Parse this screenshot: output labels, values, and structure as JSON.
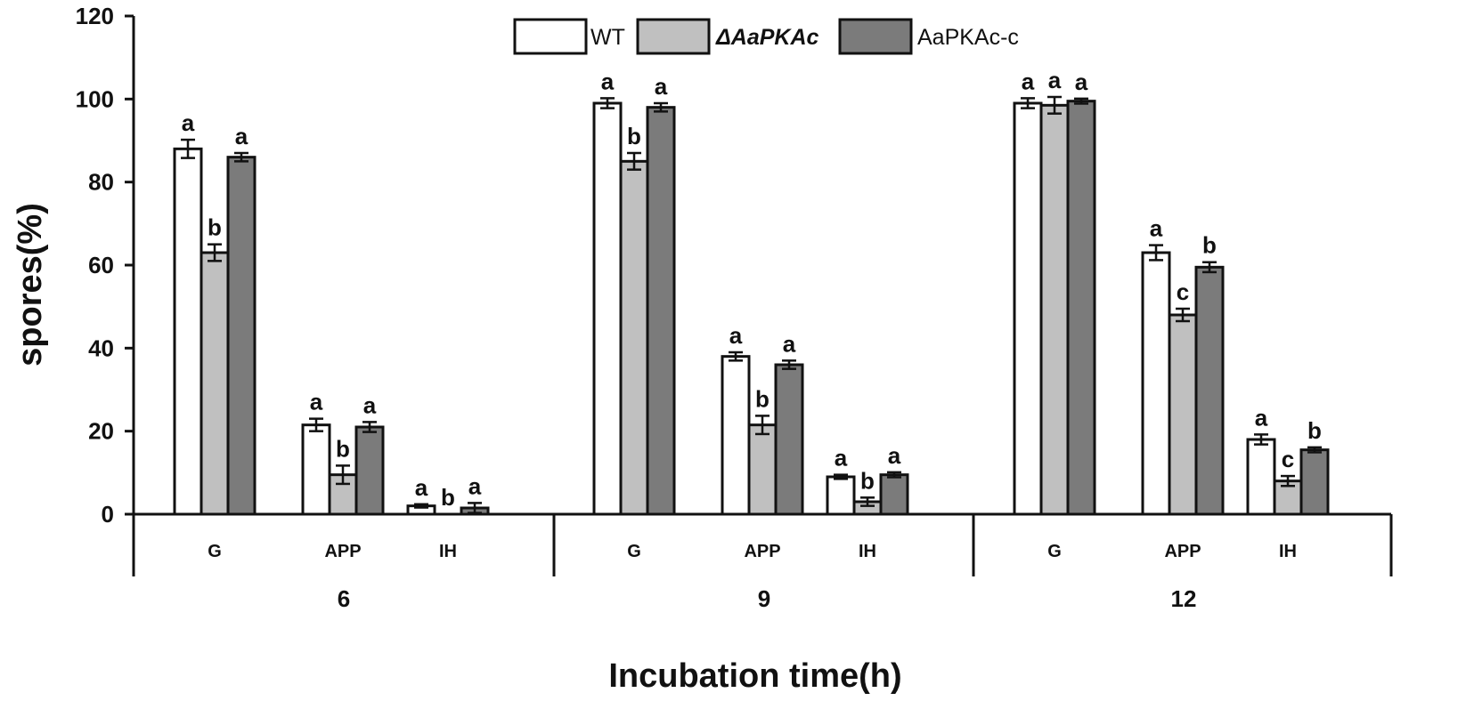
{
  "chart_data": {
    "type": "bar",
    "title": "",
    "ylabel": "spores(%)",
    "xlabel": "Incubation time(h)",
    "ylim": [
      0,
      120
    ],
    "yticks": [
      0,
      20,
      40,
      60,
      80,
      100,
      120
    ],
    "grid": false,
    "legend_position": "top-center",
    "groups": [
      {
        "label": "6",
        "categories": [
          "G",
          "APP",
          "IH"
        ]
      },
      {
        "label": "9",
        "categories": [
          "G",
          "APP",
          "IH"
        ]
      },
      {
        "label": "12",
        "categories": [
          "G",
          "APP",
          "IH"
        ]
      }
    ],
    "series": [
      {
        "name": "WT",
        "italic": false,
        "color": "#ffffff",
        "values": [
          88,
          21.5,
          2,
          99,
          38,
          9,
          99,
          63,
          18
        ],
        "errors": [
          2.2,
          1.5,
          0.4,
          1.2,
          1.0,
          0.5,
          1.2,
          1.8,
          1.2
        ],
        "labels": [
          "a",
          "a",
          "a",
          "a",
          "a",
          "a",
          "a",
          "a",
          "a"
        ]
      },
      {
        "name": "ΔAaPKAc",
        "italic": true,
        "color": "#c0c0c0",
        "values": [
          63,
          9.5,
          0,
          85,
          21.5,
          3,
          98.5,
          48,
          8
        ],
        "errors": [
          2.0,
          2.2,
          0,
          2.0,
          2.2,
          1.0,
          2.0,
          1.5,
          1.2
        ],
        "labels": [
          "b",
          "b",
          "b",
          "b",
          "b",
          "b",
          "a",
          "c",
          "c"
        ]
      },
      {
        "name": "AaPKAc-c",
        "italic": false,
        "color": "#7b7b7b",
        "values": [
          86,
          21,
          1.5,
          98,
          36,
          9.5,
          99.5,
          59.5,
          15.5
        ],
        "errors": [
          1.0,
          1.2,
          1.2,
          1.0,
          1.0,
          0.6,
          0.6,
          1.2,
          0.6
        ],
        "labels": [
          "a",
          "a",
          "a",
          "a",
          "a",
          "a",
          "a",
          "b",
          "b"
        ]
      }
    ]
  }
}
